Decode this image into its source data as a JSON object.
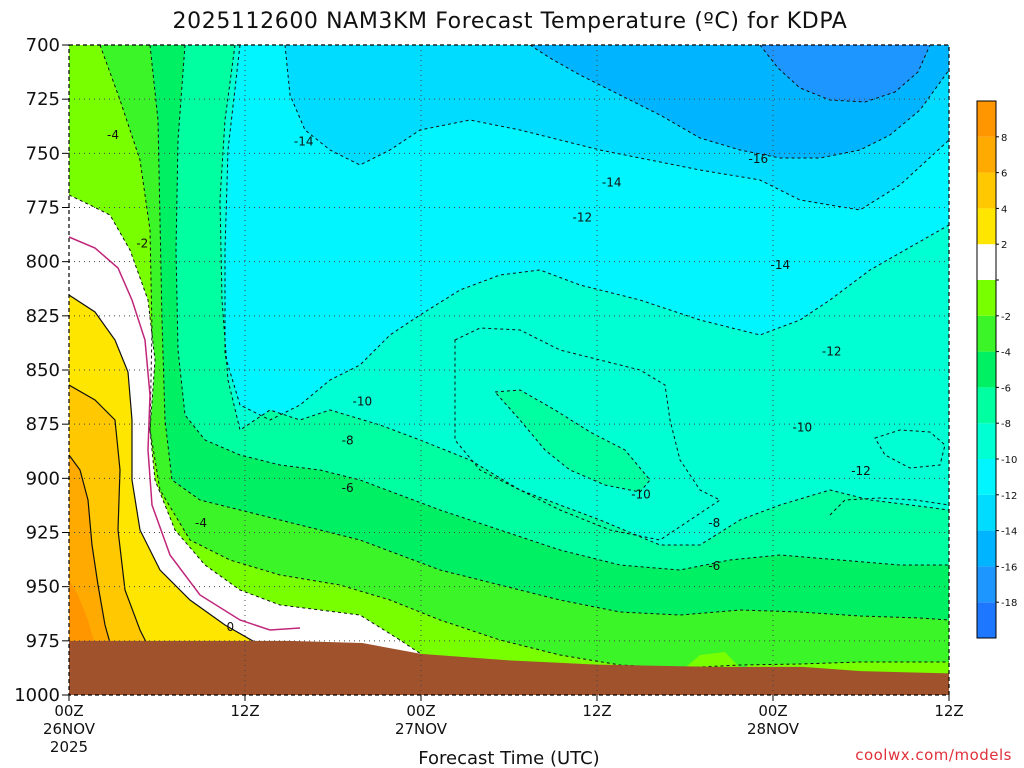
{
  "chart_data": {
    "type": "heatmap",
    "title": "2025112600 NAM3KM Forecast Temperature (ºC) for KDPA",
    "xlabel": "Forecast Time (UTC)",
    "ylabel": "",
    "y_axis": {
      "ticks": [
        700,
        725,
        750,
        775,
        800,
        825,
        850,
        875,
        900,
        925,
        950,
        975,
        1000
      ],
      "ylim": [
        700,
        1000
      ],
      "unit": "hPa",
      "inverted": true
    },
    "x_axis": {
      "xlim": [
        0,
        60
      ],
      "unit": "forecast hour",
      "ticks": [
        {
          "hour": 0,
          "label": "00Z",
          "date": "26NOV",
          "year": "2025"
        },
        {
          "hour": 12,
          "label": "12Z",
          "date": "",
          "year": ""
        },
        {
          "hour": 24,
          "label": "00Z",
          "date": "27NOV",
          "year": ""
        },
        {
          "hour": 36,
          "label": "12Z",
          "date": "",
          "year": ""
        },
        {
          "hour": 48,
          "label": "00Z",
          "date": "28NOV",
          "year": ""
        },
        {
          "hour": 60,
          "label": "12Z",
          "date": "",
          "year": ""
        }
      ]
    },
    "grid": true,
    "colorbar": {
      "position": "right",
      "levels": [
        -20,
        -18,
        -16,
        -14,
        -12,
        -10,
        -8,
        -6,
        -4,
        -2,
        0,
        2,
        4,
        6,
        8,
        10
      ],
      "colors": [
        "#1e78ff",
        "#1e96ff",
        "#00b4ff",
        "#00dcff",
        "#00f5ff",
        "#00ffd2",
        "#00ffa0",
        "#00f064",
        "#3cf528",
        "#78ff00",
        "#ffffff",
        "#ffe600",
        "#ffc800",
        "#ffaa00",
        "#ff9600"
      ],
      "tick_labels": [
        "-18",
        "-16",
        "-14",
        "-12",
        "-10",
        "-8",
        "-6",
        "-4",
        "-2",
        "2",
        "4",
        "6",
        "8"
      ]
    },
    "contour_labels": [
      {
        "value": "-4",
        "hour": 3.0,
        "pressure": 742
      },
      {
        "value": "-2",
        "hour": 5.0,
        "pressure": 792
      },
      {
        "value": "-14",
        "hour": 16.0,
        "pressure": 745
      },
      {
        "value": "-10",
        "hour": 20.0,
        "pressure": 865
      },
      {
        "value": "-8",
        "hour": 19.0,
        "pressure": 883
      },
      {
        "value": "-6",
        "hour": 19.0,
        "pressure": 905
      },
      {
        "value": "-4",
        "hour": 9.0,
        "pressure": 921
      },
      {
        "value": "0",
        "hour": 11.0,
        "pressure": 969
      },
      {
        "value": "-14",
        "hour": 37.0,
        "pressure": 764
      },
      {
        "value": "-12",
        "hour": 35.0,
        "pressure": 780
      },
      {
        "value": "-16",
        "hour": 47.0,
        "pressure": 753
      },
      {
        "value": "-14",
        "hour": 48.5,
        "pressure": 802
      },
      {
        "value": "-12",
        "hour": 52.0,
        "pressure": 842
      },
      {
        "value": "-10",
        "hour": 50.0,
        "pressure": 877
      },
      {
        "value": "-12",
        "hour": 54.0,
        "pressure": 897
      },
      {
        "value": "-10",
        "hour": 39.0,
        "pressure": 908
      },
      {
        "value": "-8",
        "hour": 44.0,
        "pressure": 921
      },
      {
        "value": "-6",
        "hour": 44.0,
        "pressure": 941
      }
    ],
    "series": [
      {
        "name": "-2/0 °C boundary (hour at pressure)",
        "pressure": [
          700,
          760,
          800,
          850,
          900,
          950,
          975
        ],
        "hours": [
          5.0,
          4.5,
          6.5,
          6.0,
          6.5,
          9.0,
          12.5
        ]
      },
      {
        "name": "-4 °C isotherm",
        "pressure": [
          700,
          750,
          800,
          850,
          900,
          925,
          950
        ],
        "hours": [
          5.5,
          6.0,
          7.0,
          7.0,
          9.0,
          9.0,
          12.0
        ]
      },
      {
        "name": "-6 °C isotherm",
        "pressure": [
          700,
          750,
          800,
          850,
          875,
          900,
          950
        ],
        "hours": [
          6.5,
          7.5,
          8.0,
          9.0,
          10.5,
          17.0,
          37.0
        ]
      },
      {
        "name": "-8 °C isotherm",
        "pressure": [
          700,
          750,
          800,
          850,
          875,
          900,
          925
        ],
        "hours": [
          7.5,
          8.5,
          9.5,
          11.0,
          19.0,
          27.0,
          44.0
        ]
      },
      {
        "name": "-10 °C isotherm",
        "pressure": [
          700,
          750,
          800,
          850,
          870
        ],
        "hours": [
          9.0,
          10.0,
          11.0,
          14.0,
          20.0
        ]
      },
      {
        "name": "-14 °C isotherm",
        "pressure": [
          700,
          750,
          775,
          800
        ],
        "hours": [
          14.5,
          16.0,
          24.0,
          36.0
        ]
      },
      {
        "name": "-16 °C isotherm",
        "pressure": [
          730,
          760,
          790,
          800
        ],
        "hours": [
          30.0,
          45.0,
          49.0,
          51.0
        ]
      }
    ],
    "ground_surface": {
      "hours": [
        0,
        15,
        20,
        24,
        30,
        36,
        44,
        50,
        54,
        60
      ],
      "pressure": [
        975,
        975,
        976,
        981,
        984,
        986,
        987,
        987,
        989,
        990
      ]
    }
  },
  "credit": "coolwx.com/models",
  "colors": {
    "ground": "#a0522d",
    "border": "#000000",
    "freeze_line": "#c0267a"
  }
}
